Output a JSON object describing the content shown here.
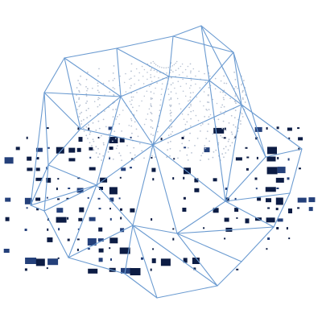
{
  "canvas": {
    "background": "#ffffff"
  },
  "palette": {
    "wire": "#6b9bd1",
    "inner_dots": "#b9c3d3",
    "block_dark": "#0c1c44",
    "block_mid": "#24407a"
  },
  "graphic": {
    "subject": "wireframe-polyhedron-over-data-grid",
    "elements": [
      "pixel-block-grid",
      "dotted-inner-sphere",
      "wireframe-polyhedron"
    ]
  }
}
